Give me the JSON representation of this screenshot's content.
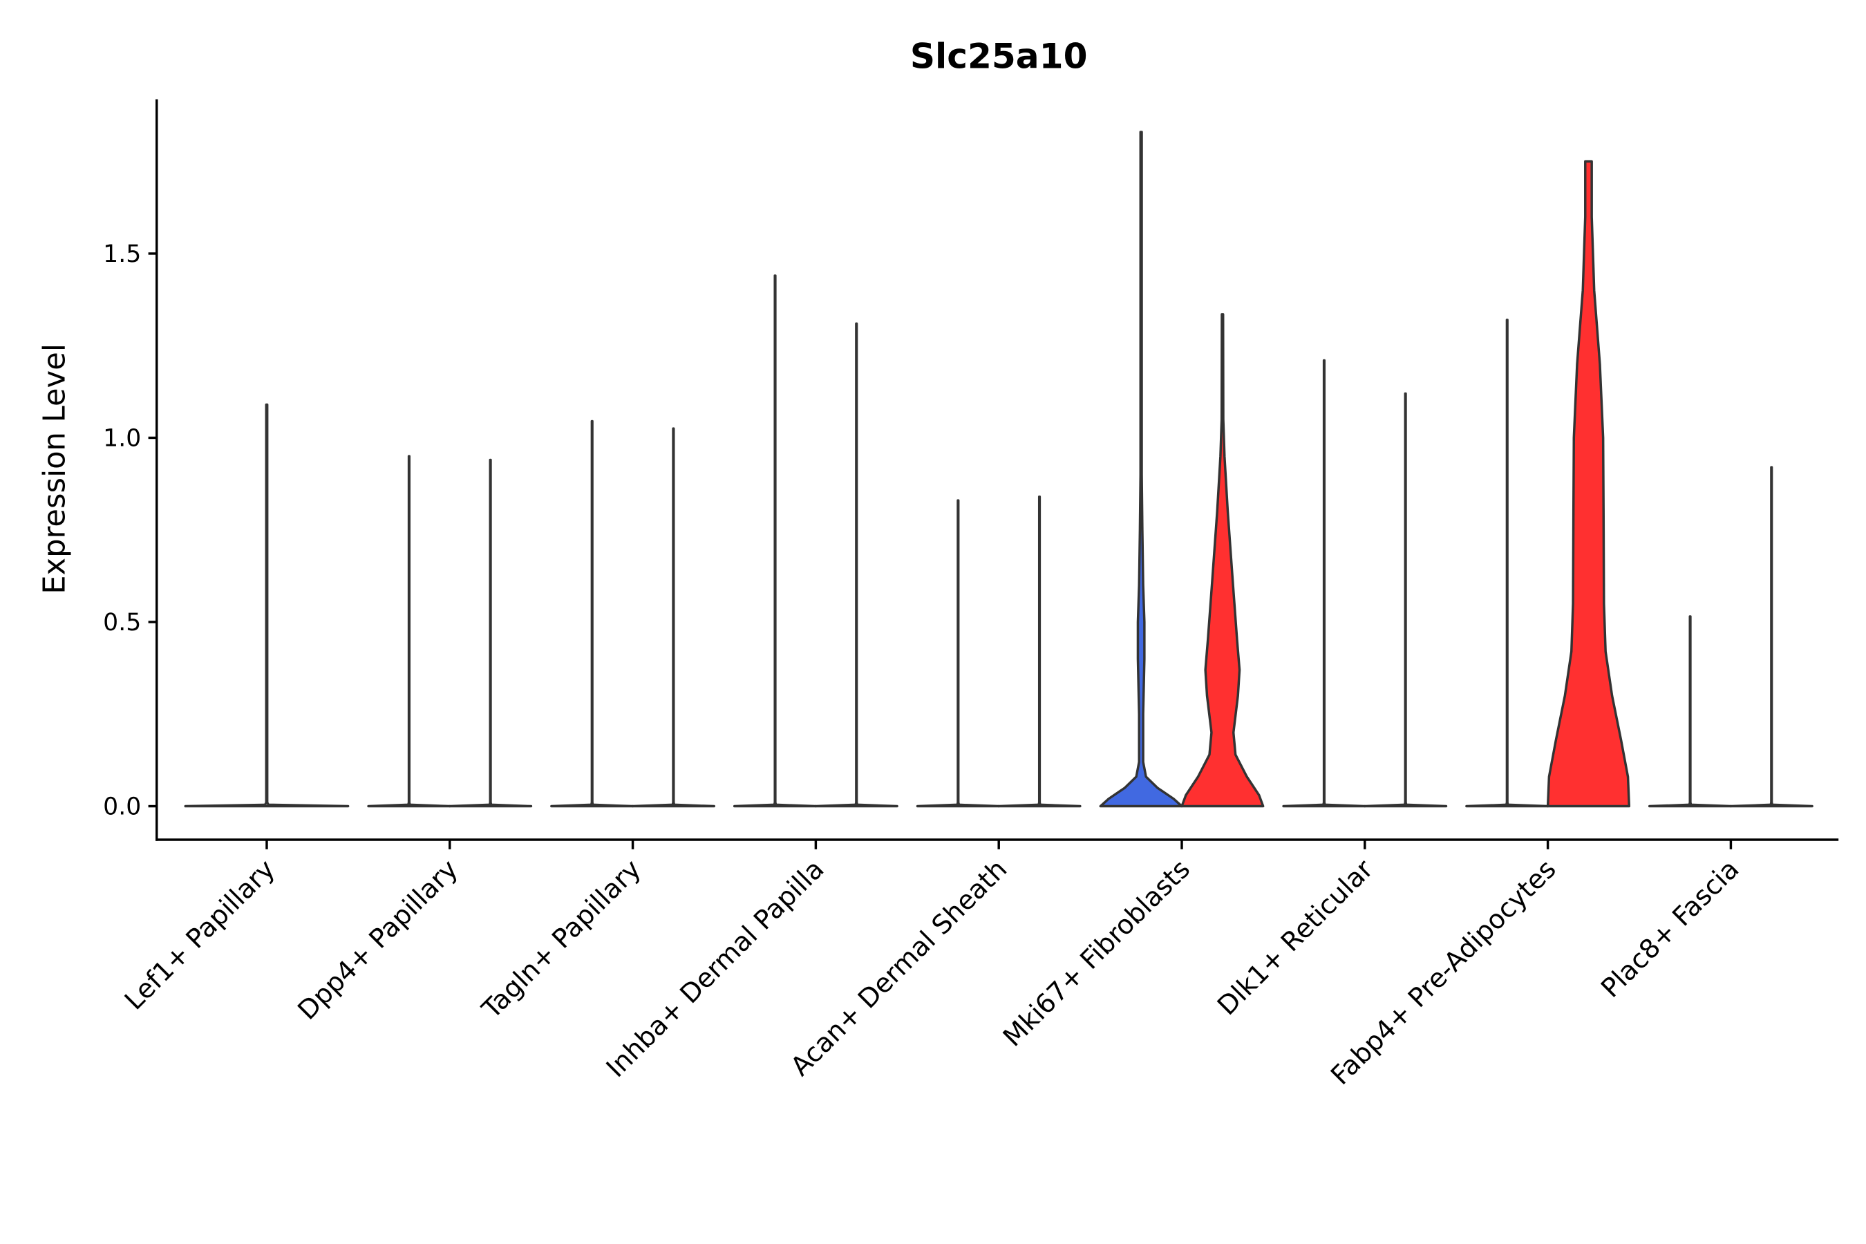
{
  "chart_data": {
    "type": "violin",
    "title": "Slc25a10",
    "xlabel": "",
    "ylabel": "Expression Level",
    "ylim": [
      -0.09,
      1.92
    ],
    "yticks": [
      0.0,
      0.5,
      1.0,
      1.5
    ],
    "ytick_labels": [
      "0.0",
      "0.5",
      "1.0",
      "1.5"
    ],
    "grid": false,
    "legend": "none",
    "colors": {
      "blue": "#4169E1",
      "red": "#FF3030",
      "outline": "#333333",
      "flat": "#ffffff"
    },
    "categories": [
      {
        "label": "Lef1+ Papillary",
        "violins": [
          {
            "max": 1.09,
            "fill": "flat",
            "wide": true
          }
        ]
      },
      {
        "label": "Dpp4+ Papillary",
        "violins": [
          {
            "max": 0.95,
            "fill": "flat"
          },
          {
            "max": 0.94,
            "fill": "flat"
          }
        ]
      },
      {
        "label": "Tagln+ Papillary",
        "violins": [
          {
            "max": 1.045,
            "fill": "flat"
          },
          {
            "max": 1.025,
            "fill": "flat"
          }
        ]
      },
      {
        "label": "Inhba+ Dermal Papilla",
        "violins": [
          {
            "max": 1.44,
            "fill": "flat"
          },
          {
            "max": 1.31,
            "fill": "flat"
          }
        ]
      },
      {
        "label": "Acan+ Dermal Sheath",
        "violins": [
          {
            "max": 0.83,
            "fill": "flat"
          },
          {
            "max": 0.84,
            "fill": "flat"
          }
        ]
      },
      {
        "label": "Mki67+ Fibroblasts",
        "violins": [
          {
            "max": 1.83,
            "fill": "blue",
            "density": [
              [
                0,
                1.0
              ],
              [
                0.02,
                0.8
              ],
              [
                0.05,
                0.4
              ],
              [
                0.08,
                0.12
              ],
              [
                0.12,
                0.05
              ],
              [
                0.25,
                0.05
              ],
              [
                0.4,
                0.08
              ],
              [
                0.5,
                0.08
              ],
              [
                0.6,
                0.05
              ],
              [
                0.75,
                0.03
              ],
              [
                0.9,
                0.015
              ],
              [
                1.83,
                0.015
              ]
            ]
          },
          {
            "max": 1.335,
            "fill": "red",
            "density": [
              [
                0,
                1.0
              ],
              [
                0.03,
                0.9
              ],
              [
                0.08,
                0.6
              ],
              [
                0.14,
                0.32
              ],
              [
                0.2,
                0.27
              ],
              [
                0.3,
                0.38
              ],
              [
                0.37,
                0.42
              ],
              [
                0.45,
                0.36
              ],
              [
                0.6,
                0.26
              ],
              [
                0.8,
                0.13
              ],
              [
                0.95,
                0.05
              ],
              [
                1.05,
                0.02
              ],
              [
                1.335,
                0.015
              ]
            ]
          }
        ]
      },
      {
        "label": "Dlk1+ Reticular",
        "violins": [
          {
            "max": 1.21,
            "fill": "flat"
          },
          {
            "max": 1.12,
            "fill": "flat"
          }
        ]
      },
      {
        "label": "Fabp4+ Pre-Adipocytes",
        "violins": [
          {
            "max": 1.32,
            "fill": "flat"
          },
          {
            "max": 1.75,
            "fill": "red",
            "density": [
              [
                0,
                1.0
              ],
              [
                0.08,
                0.97
              ],
              [
                0.18,
                0.8
              ],
              [
                0.3,
                0.58
              ],
              [
                0.42,
                0.42
              ],
              [
                0.55,
                0.38
              ],
              [
                0.8,
                0.37
              ],
              [
                1.0,
                0.36
              ],
              [
                1.2,
                0.28
              ],
              [
                1.4,
                0.14
              ],
              [
                1.6,
                0.08
              ],
              [
                1.75,
                0.08
              ]
            ]
          }
        ]
      },
      {
        "label": "Plac8+ Fascia",
        "violins": [
          {
            "max": 0.515,
            "fill": "flat"
          },
          {
            "max": 0.92,
            "fill": "flat"
          }
        ]
      }
    ]
  }
}
